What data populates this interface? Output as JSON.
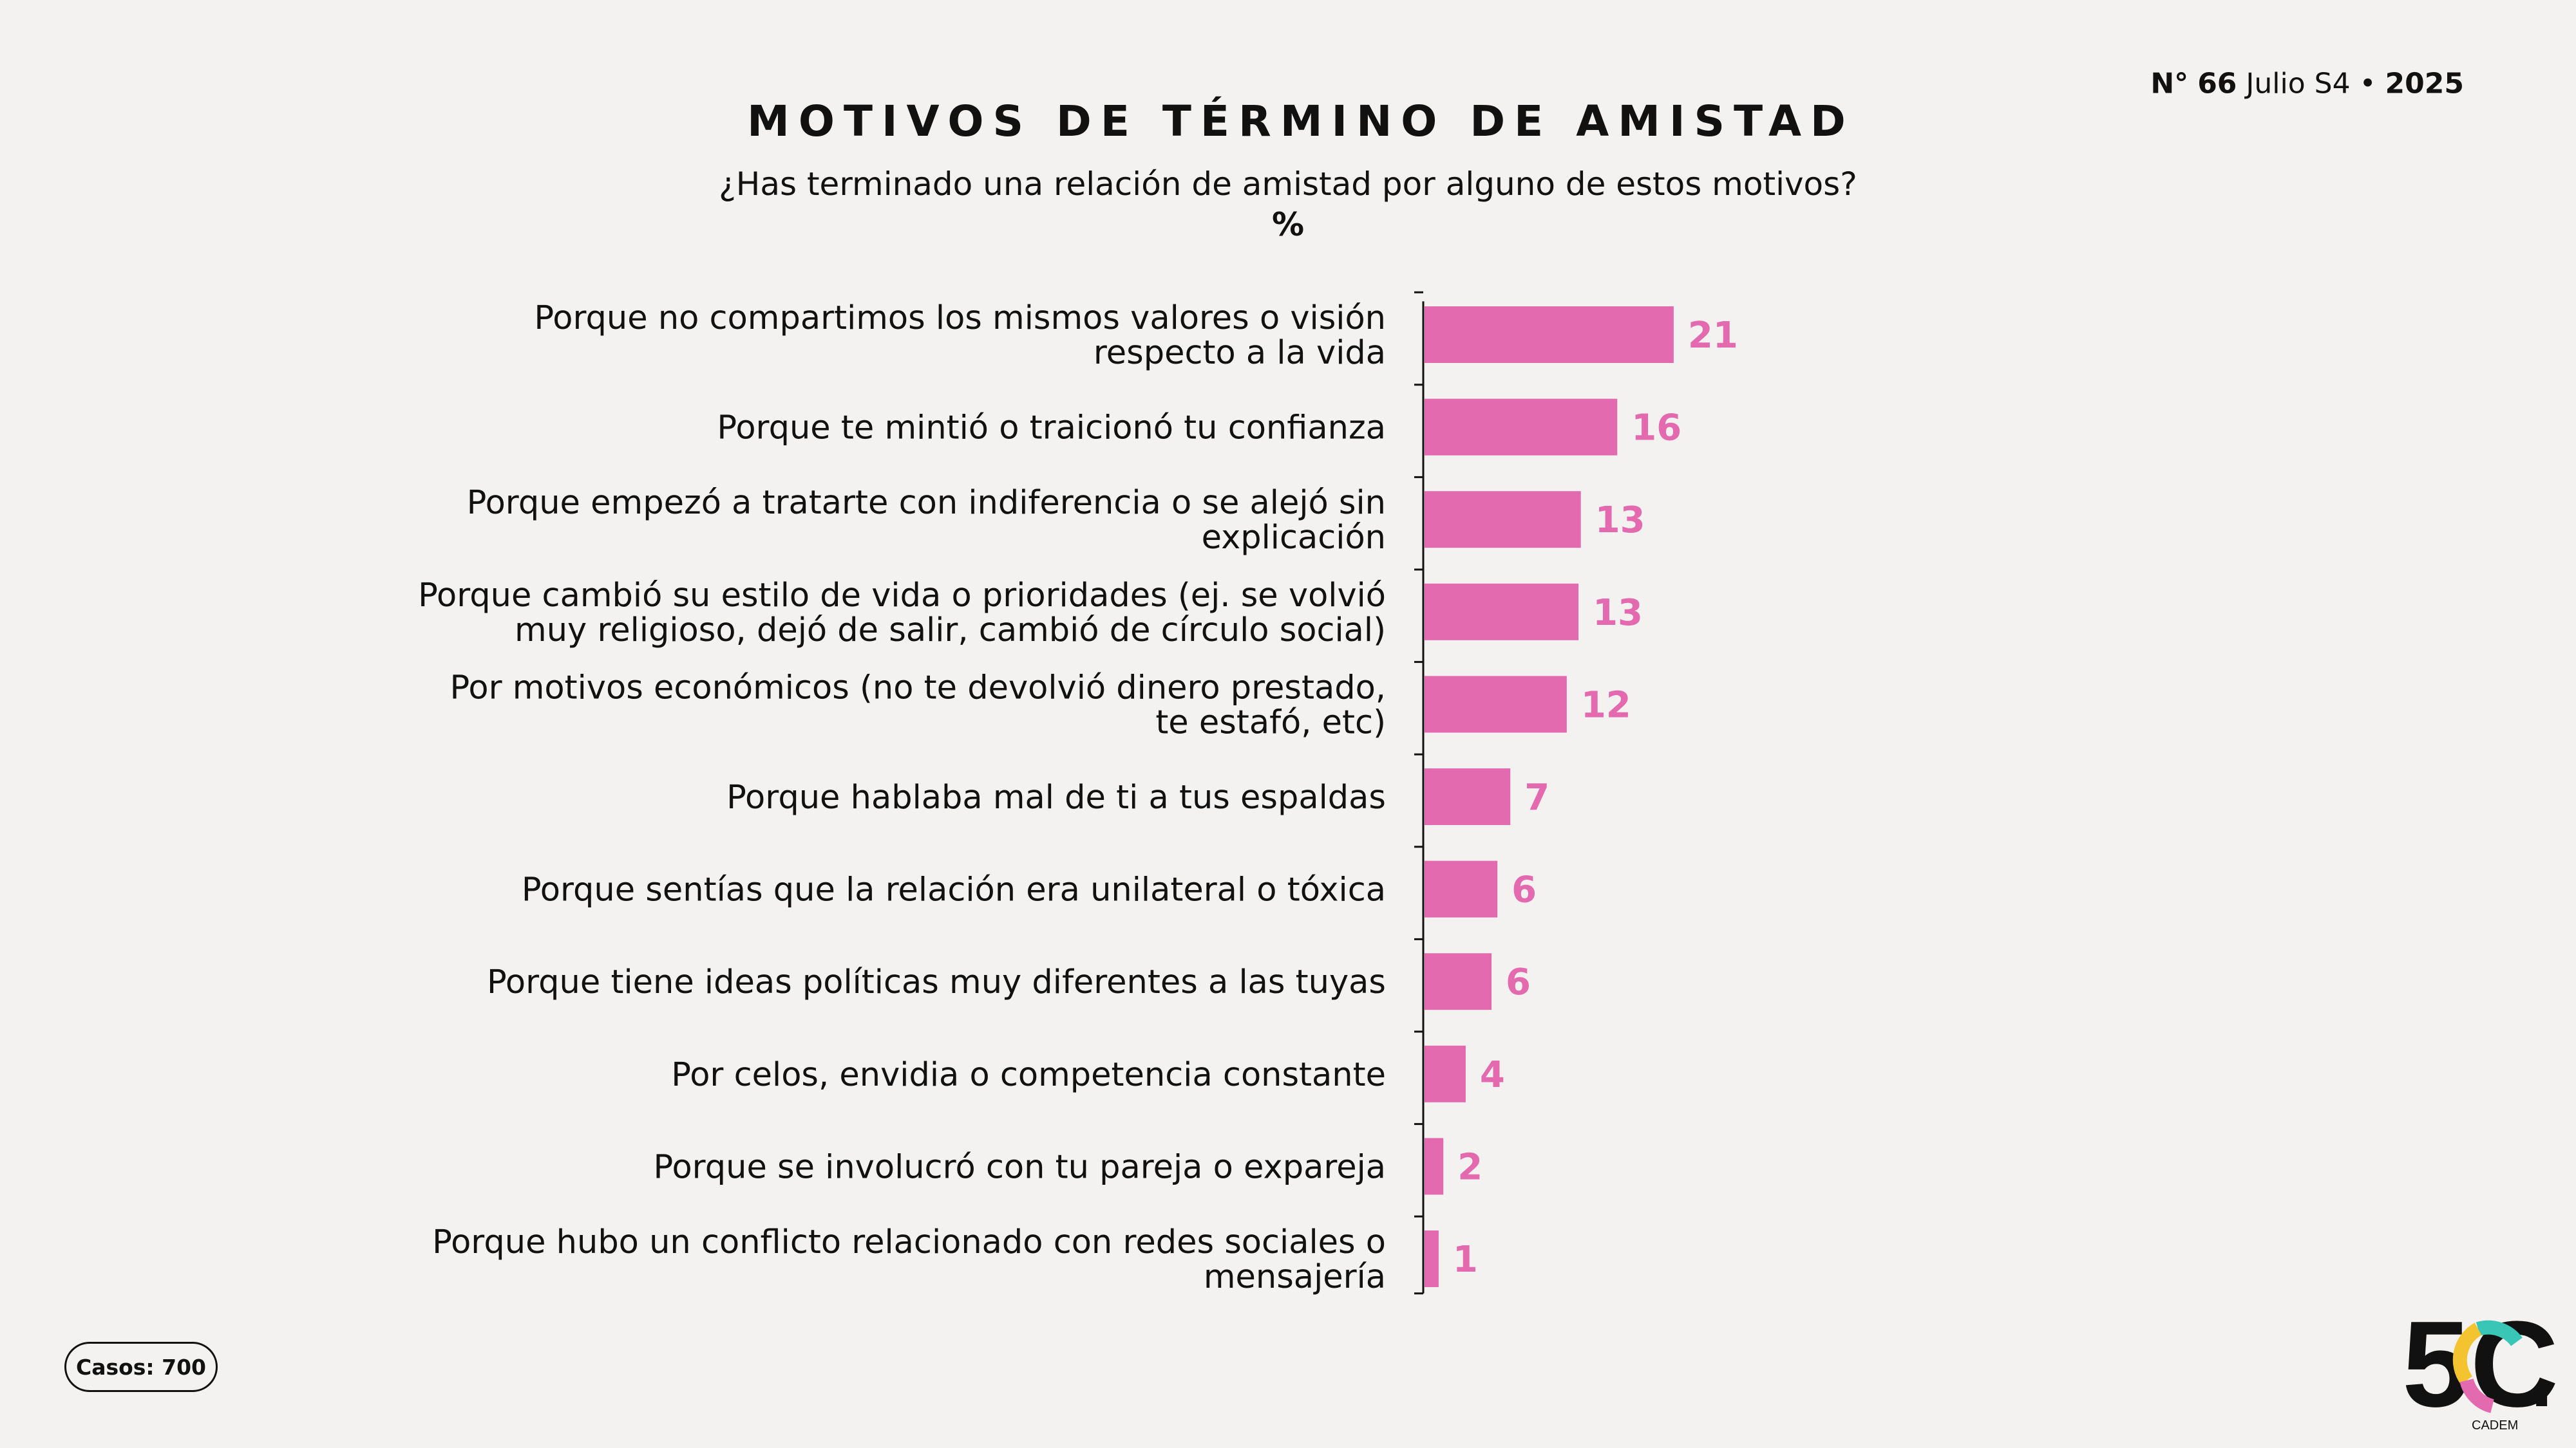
{
  "header": {
    "edition_prefix": "N°",
    "edition_number": "66",
    "edition_period": "Julio S4",
    "edition_separator": "•",
    "edition_year": "2025"
  },
  "title": "MOTIVOS DE TÉRMINO DE AMISTAD",
  "subtitle": "¿Has terminado una relación de amistad por alguno de estos motivos?",
  "unit": "%",
  "footer": {
    "cases": "Casos: 700"
  },
  "logo": {
    "mark": "5C",
    "dot": ".",
    "name": "CADEM"
  },
  "colors": {
    "bar": "#e46ab0",
    "value_label": "#e46ab0",
    "axis": "#111111"
  },
  "chart_data": {
    "type": "bar",
    "orientation": "horizontal",
    "title": "MOTIVOS DE TÉRMINO DE AMISTAD",
    "subtitle": "¿Has terminado una relación de amistad por alguno de estos motivos?",
    "xlabel": "%",
    "ylabel": "",
    "xlim": [
      0,
      25
    ],
    "grid": false,
    "categories": [
      [
        "Porque no compartimos los mismos valores o visión",
        "respecto a la vida"
      ],
      [
        "Porque te mintió o traicionó tu confianza"
      ],
      [
        "Porque empezó a tratarte con indiferencia o se alejó sin",
        "explicación"
      ],
      [
        "Porque cambió su estilo de vida o prioridades (ej. se volvió",
        "muy religioso, dejó de salir, cambió de círculo social)"
      ],
      [
        "Por motivos económicos (no te devolvió dinero prestado,",
        "te estafó, etc)"
      ],
      [
        "Porque hablaba mal de ti a tus espaldas"
      ],
      [
        "Porque sentías que la relación era unilateral o tóxica"
      ],
      [
        "Porque tiene ideas políticas muy diferentes a las tuyas"
      ],
      [
        "Por celos, envidia o competencia constante"
      ],
      [
        "Porque se involucró con tu pareja o expareja"
      ],
      [
        "Porque hubo un conflicto relacionado con redes sociales o",
        "mensajería"
      ]
    ],
    "values": [
      21,
      16,
      13,
      13,
      12,
      7,
      6,
      6,
      4,
      2,
      1
    ],
    "precise_values": [
      21.2,
      16.4,
      13.3,
      13.1,
      12.1,
      7.3,
      6.2,
      5.7,
      3.5,
      1.6,
      1.2
    ],
    "series": [
      {
        "name": "%",
        "values": [
          21,
          16,
          13,
          13,
          12,
          7,
          6,
          6,
          4,
          2,
          1
        ]
      }
    ]
  }
}
